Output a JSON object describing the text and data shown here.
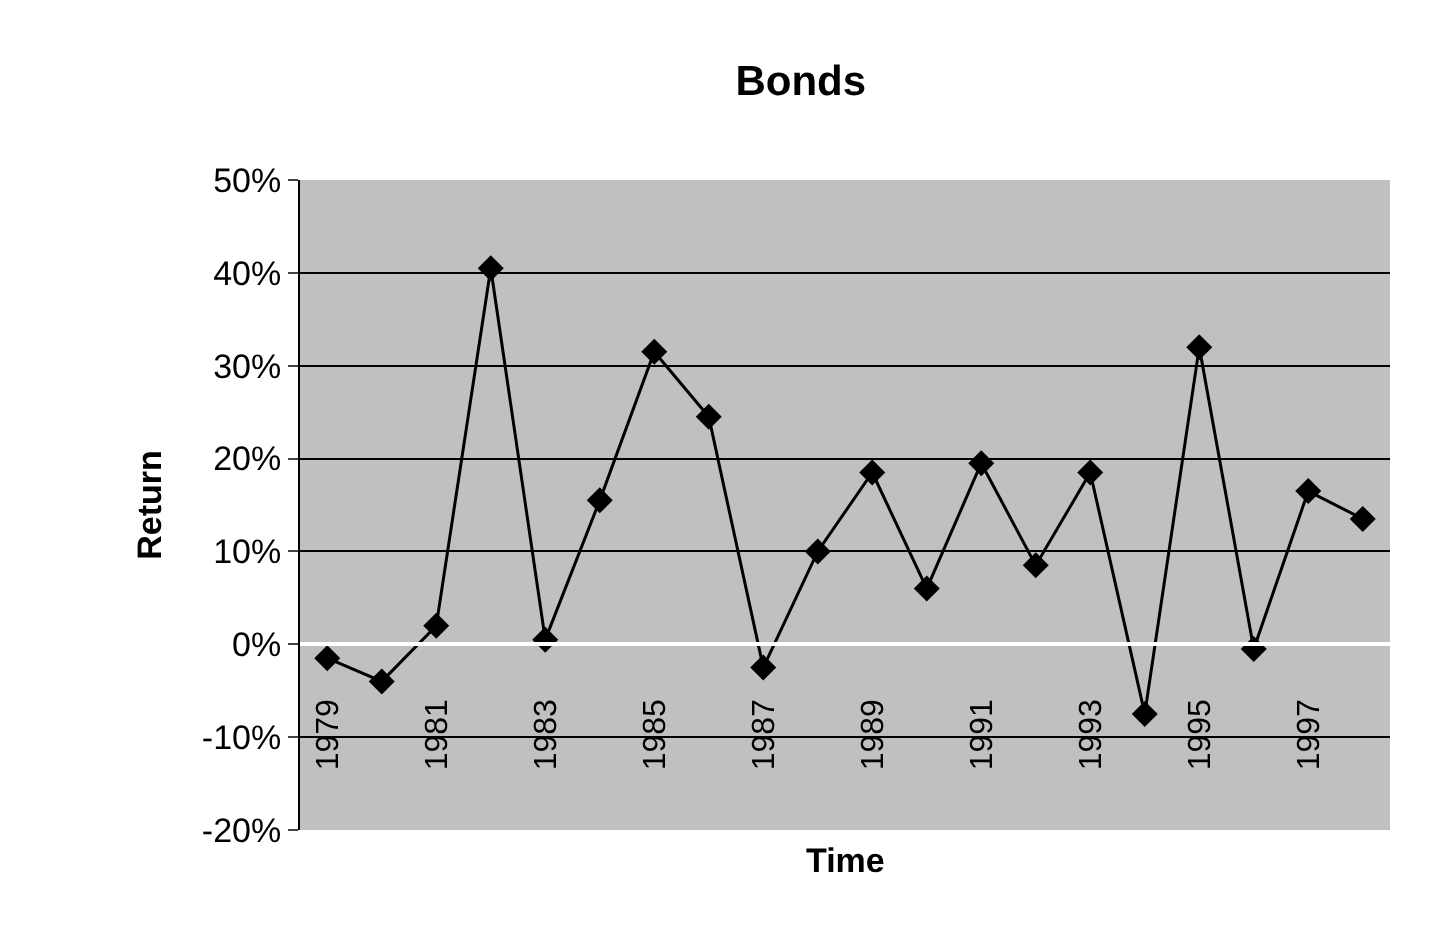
{
  "chart_data": {
    "type": "line",
    "title": "Bonds",
    "xlabel": "Time",
    "ylabel": "Return",
    "categories": [
      "1979",
      null,
      "1981",
      null,
      "1983",
      null,
      "1985",
      null,
      "1987",
      null,
      "1989",
      null,
      "1991",
      null,
      "1993",
      null,
      "1995",
      null,
      "1997",
      null
    ],
    "series": [
      {
        "color": "#000000",
        "values": [
          -1.5,
          -4,
          2,
          40.5,
          0.5,
          15.5,
          31.5,
          24.5,
          -2.5,
          10,
          18.5,
          6,
          19.5,
          8.5,
          18.5,
          -7.5,
          32,
          -0.5,
          16.5,
          13.5
        ]
      }
    ],
    "ylim": [
      -20,
      50
    ],
    "yticks": [
      {
        "value": -20,
        "label": "-20%"
      },
      {
        "value": -10,
        "label": "-10%"
      },
      {
        "value": 0,
        "label": "0%"
      },
      {
        "value": 10,
        "label": "10%"
      },
      {
        "value": 20,
        "label": "20%"
      },
      {
        "value": 30,
        "label": "30%"
      },
      {
        "value": 40,
        "label": "40%"
      },
      {
        "value": 50,
        "label": "50%"
      }
    ],
    "grid": "y",
    "marker": "diamond",
    "line_style": "solid"
  }
}
